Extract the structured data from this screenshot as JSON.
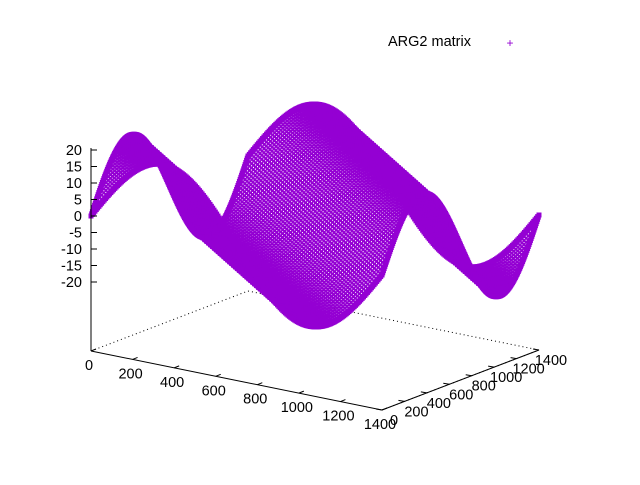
{
  "chart_data": {
    "type": "scatter",
    "plot_style": "3d-surface-points",
    "legend": {
      "placement": "top-right",
      "entries": [
        {
          "label": "ARG2 matrix",
          "marker": "+",
          "color": "#9400d3"
        }
      ]
    },
    "series": [
      {
        "name": "ARG2 matrix",
        "color": "#9400d3",
        "marker": "+",
        "function": "z = 20*sin(2*pi*(x+y)/1400)",
        "x_range": [
          0,
          1400
        ],
        "y_range": [
          0,
          1400
        ],
        "z_range": [
          -20,
          20
        ],
        "sample_points": [
          {
            "x": 0,
            "y": 0,
            "z": 0
          },
          {
            "x": 175,
            "y": 0,
            "z": 14.1
          },
          {
            "x": 350,
            "y": 0,
            "z": 20
          },
          {
            "x": 525,
            "y": 0,
            "z": 14.1
          },
          {
            "x": 700,
            "y": 0,
            "z": 0
          },
          {
            "x": 875,
            "y": 0,
            "z": -14.1
          },
          {
            "x": 1050,
            "y": 0,
            "z": -20
          },
          {
            "x": 1225,
            "y": 0,
            "z": -14.1
          },
          {
            "x": 1400,
            "y": 0,
            "z": 0
          },
          {
            "x": 0,
            "y": 350,
            "z": 20
          },
          {
            "x": 0,
            "y": 700,
            "z": 0
          },
          {
            "x": 0,
            "y": 1050,
            "z": -20
          },
          {
            "x": 0,
            "y": 1400,
            "z": 0
          }
        ]
      }
    ],
    "axes": {
      "x": {
        "range": [
          0,
          1400
        ],
        "ticks": [
          0,
          200,
          400,
          600,
          800,
          1000,
          1200,
          1400
        ],
        "tick_labels": [
          "0",
          "200",
          "400",
          "600",
          "800",
          "1000",
          "1200",
          "1400"
        ]
      },
      "y": {
        "range": [
          0,
          1400
        ],
        "ticks": [
          0,
          200,
          400,
          600,
          800,
          1000,
          1200,
          1400
        ],
        "tick_labels": [
          "0",
          "200",
          "400",
          "600",
          "800",
          "1000",
          "1200",
          "1400"
        ]
      },
      "z": {
        "range": [
          -20,
          20
        ],
        "ticks": [
          -20,
          -15,
          -10,
          -5,
          0,
          5,
          10,
          15,
          20
        ],
        "tick_labels": [
          "-20",
          "-15",
          "-10",
          "-5",
          "0",
          "5",
          "10",
          "15",
          "20"
        ]
      }
    },
    "grid": false
  }
}
